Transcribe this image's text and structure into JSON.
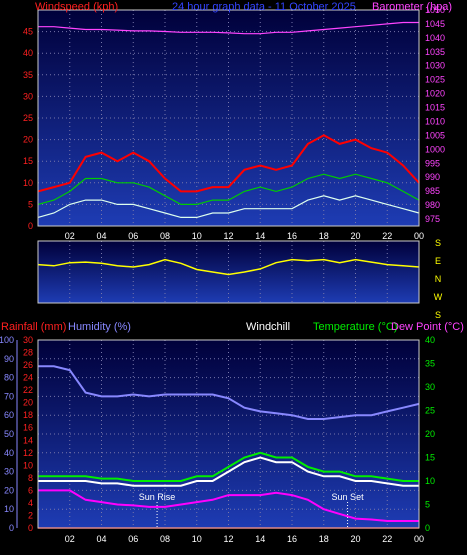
{
  "chart_data": [
    {
      "type": "line",
      "title": "24 hour graph data - 11 October 2025",
      "ylabel_left": "Windspeed (kph)",
      "ylabel_right": "Barometer (hpa)",
      "x_ticks": [
        "02",
        "04",
        "06",
        "08",
        "10",
        "12",
        "14",
        "16",
        "18",
        "20",
        "22",
        "00"
      ],
      "y_left_ticks": [
        0,
        5,
        10,
        15,
        20,
        25,
        30,
        35,
        40,
        45
      ],
      "y_left_range": [
        0,
        50
      ],
      "y_right_ticks": [
        975,
        980,
        985,
        990,
        995,
        1000,
        1005,
        1010,
        1015,
        1020,
        1025,
        1030,
        1035,
        1040,
        1045,
        1050
      ],
      "y_right_range": [
        972.5,
        1050
      ],
      "x_hours": [
        0,
        1,
        2,
        3,
        4,
        5,
        6,
        7,
        8,
        9,
        10,
        11,
        12,
        13,
        14,
        15,
        16,
        17,
        18,
        19,
        20,
        21,
        22,
        23,
        24
      ],
      "series": [
        {
          "name": "Windspeed (kph)",
          "color": "#ff0000",
          "values": [
            8,
            9,
            10,
            16,
            17,
            15,
            17,
            15,
            11,
            8,
            8,
            9,
            9,
            13,
            14,
            13,
            14,
            19,
            21,
            19,
            20,
            18,
            17,
            14,
            10
          ]
        },
        {
          "name": "",
          "color": "#00cc00",
          "values": [
            5,
            6,
            8,
            11,
            11,
            10,
            10,
            9,
            7,
            5,
            5,
            6,
            6,
            8,
            9,
            8,
            9,
            11,
            12,
            11,
            12,
            11,
            10,
            8,
            6
          ]
        },
        {
          "name": "",
          "color": "#ddffee",
          "values": [
            2,
            3,
            5,
            6,
            6,
            5,
            5,
            4,
            3,
            2,
            2,
            3,
            3,
            4,
            4,
            4,
            4,
            6,
            7,
            6,
            7,
            6,
            5,
            4,
            3
          ]
        },
        {
          "name": "Barometer (hpa)",
          "color": "#ff44ff",
          "values": [
            1044,
            1044,
            1043.5,
            1043,
            1043,
            1042.8,
            1042.5,
            1042.5,
            1042.3,
            1042,
            1042,
            1042,
            1041.8,
            1041.5,
            1041.5,
            1042,
            1042,
            1042.5,
            1043,
            1043.5,
            1044,
            1044.5,
            1045,
            1045.5,
            1045.5
          ]
        }
      ]
    },
    {
      "type": "line",
      "ylabel_right": [
        "S",
        "E",
        "N",
        "W",
        "S"
      ],
      "series": [
        {
          "name": "Wind direction",
          "color": "#ffff00",
          "values": [
            0.38,
            0.4,
            0.35,
            0.34,
            0.36,
            0.4,
            0.42,
            0.38,
            0.3,
            0.36,
            0.46,
            0.5,
            0.54,
            0.5,
            0.45,
            0.35,
            0.3,
            0.32,
            0.3,
            0.35,
            0.3,
            0.34,
            0.38,
            0.4,
            0.42
          ]
        }
      ]
    },
    {
      "type": "line",
      "labels": {
        "rainfall": "Rainfall (mm)",
        "humidity": "Humidity (%)",
        "windchill": "Windchill",
        "temperature": "Temperature (°C)",
        "dewpoint": "Dew Point (°C)"
      },
      "annotations": [
        "Sun Rise",
        "Sun Set"
      ],
      "sunrise_hour": 7.5,
      "sunset_hour": 19.5,
      "humidity_ticks": [
        0,
        10,
        20,
        30,
        40,
        50,
        60,
        70,
        80,
        90,
        100
      ],
      "rain_ticks": [
        0,
        2,
        4,
        6,
        8,
        10,
        12,
        14,
        16,
        18,
        20,
        22,
        24,
        26,
        28,
        30
      ],
      "temp_ticks": [
        0,
        5,
        10,
        15,
        20,
        25,
        30,
        35,
        40
      ],
      "temp_range": [
        0,
        40
      ],
      "series": [
        {
          "name": "Humidity (%)",
          "color": "#8888ff",
          "values": [
            86,
            86,
            84,
            72,
            70,
            70,
            71,
            70,
            71,
            71,
            71,
            71,
            69,
            64,
            62,
            61,
            60,
            58,
            58,
            59,
            60,
            60,
            62,
            64,
            66
          ]
        },
        {
          "name": "Temperature (°C)",
          "color": "#00ee00",
          "values": [
            11,
            11,
            11,
            11,
            10.5,
            10.5,
            10,
            10,
            10,
            10,
            11,
            11,
            13,
            15,
            16,
            15,
            15,
            13,
            12,
            12,
            11,
            11,
            10.5,
            10,
            10
          ]
        },
        {
          "name": "Windchill",
          "color": "#ffffff",
          "values": [
            10,
            10,
            10,
            10,
            9.5,
            9.5,
            9,
            9,
            9,
            9,
            10,
            10,
            12,
            14,
            15,
            14,
            14,
            12,
            11,
            11,
            10,
            10,
            9.5,
            9,
            9
          ]
        },
        {
          "name": "Dew Point (°C)",
          "color": "#ff00ff",
          "values": [
            8,
            8,
            8,
            6,
            5.5,
            5,
            4.8,
            4.5,
            4.5,
            5,
            5.5,
            6,
            7,
            7,
            7,
            7.5,
            7,
            6,
            4,
            3,
            2,
            1.8,
            1.5,
            1.5,
            1.5
          ]
        },
        {
          "name": "Rainfall (mm)",
          "color": "#ff0000",
          "values": [
            0,
            0,
            0,
            0,
            0,
            0,
            0,
            0,
            0,
            0,
            0,
            0,
            0,
            0,
            0,
            0,
            0,
            0,
            0,
            0,
            0,
            0,
            0,
            0,
            0
          ]
        }
      ]
    }
  ]
}
